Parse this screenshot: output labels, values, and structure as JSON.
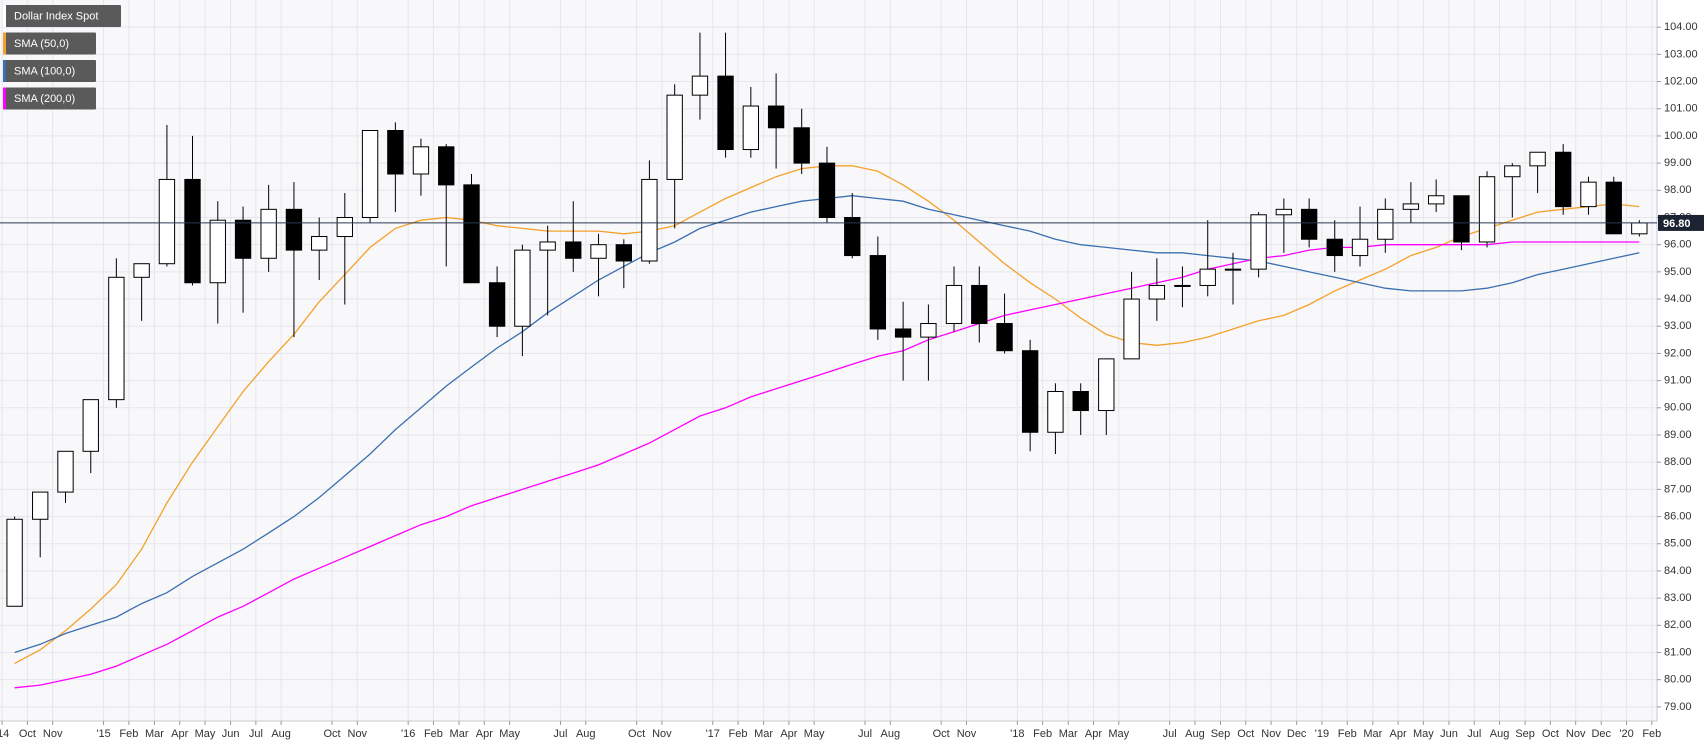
{
  "chart_data": {
    "type": "candlestick",
    "name": "Dollar Index Spot",
    "x": [
      2014.708,
      2014.792,
      2014.875,
      2014.958,
      2015.042,
      2015.125,
      2015.208,
      2015.292,
      2015.375,
      2015.458,
      2015.542,
      2015.625,
      2015.708,
      2015.792,
      2015.875,
      2015.958,
      2016.042,
      2016.125,
      2016.208,
      2016.292,
      2016.375,
      2016.458,
      2016.542,
      2016.625,
      2016.708,
      2016.792,
      2016.875,
      2016.958,
      2017.042,
      2017.125,
      2017.208,
      2017.292,
      2017.375,
      2017.458,
      2017.542,
      2017.625,
      2017.708,
      2017.792,
      2017.875,
      2017.958,
      2018.042,
      2018.125,
      2018.208,
      2018.292,
      2018.375,
      2018.458,
      2018.542,
      2018.625,
      2018.708,
      2018.792,
      2018.875,
      2018.958,
      2019.042,
      2019.125,
      2019.208,
      2019.292,
      2019.375,
      2019.458,
      2019.542,
      2019.625,
      2019.708,
      2019.792,
      2019.875,
      2019.958,
      2020.042
    ],
    "open": [
      82.7,
      85.9,
      86.9,
      88.4,
      90.3,
      94.8,
      95.3,
      98.4,
      94.6,
      96.9,
      95.5,
      97.3,
      95.8,
      96.3,
      97.0,
      100.2,
      98.6,
      99.6,
      98.2,
      94.6,
      93.0,
      95.8,
      96.1,
      95.5,
      96.0,
      95.4,
      98.4,
      101.5,
      102.2,
      99.5,
      101.1,
      100.3,
      99.0,
      97.0,
      95.6,
      92.9,
      92.6,
      93.1,
      94.5,
      93.1,
      92.1,
      89.1,
      90.6,
      89.9,
      91.8,
      94.0,
      94.5,
      94.5,
      95.1,
      95.1,
      97.1,
      97.3,
      96.2,
      95.6,
      96.2,
      97.3,
      97.5,
      97.8,
      96.1,
      98.5,
      98.9,
      99.4,
      97.4,
      98.3,
      96.4
    ],
    "high": [
      86.0,
      86.9,
      88.4,
      90.3,
      95.5,
      95.3,
      100.4,
      100.0,
      97.6,
      97.4,
      98.2,
      98.3,
      97.0,
      97.9,
      100.2,
      100.5,
      99.9,
      99.7,
      98.6,
      95.2,
      96.0,
      96.7,
      97.6,
      96.4,
      96.2,
      99.1,
      101.9,
      103.8,
      103.8,
      101.8,
      102.3,
      101.0,
      99.6,
      97.9,
      96.3,
      93.9,
      93.8,
      95.2,
      95.2,
      94.2,
      92.5,
      90.9,
      90.9,
      91.8,
      95.0,
      95.5,
      95.2,
      96.9,
      95.7,
      97.2,
      97.7,
      97.7,
      96.9,
      97.4,
      97.7,
      98.3,
      98.4,
      97.8,
      98.7,
      99.0,
      99.4,
      99.7,
      98.5,
      98.5,
      96.9
    ],
    "low": [
      82.7,
      84.5,
      86.5,
      87.6,
      90.0,
      93.2,
      95.2,
      94.5,
      93.1,
      93.5,
      95.0,
      92.6,
      94.7,
      93.8,
      96.8,
      97.2,
      97.8,
      95.2,
      94.6,
      92.6,
      91.9,
      93.4,
      95.0,
      94.1,
      94.4,
      95.3,
      96.6,
      100.6,
      99.2,
      99.2,
      98.8,
      98.6,
      96.8,
      95.5,
      92.5,
      91.0,
      91.0,
      92.8,
      92.4,
      92.0,
      88.4,
      88.3,
      89.0,
      89.0,
      91.8,
      93.2,
      93.7,
      94.1,
      93.8,
      94.8,
      95.7,
      95.9,
      95.0,
      95.2,
      95.7,
      96.8,
      97.2,
      95.8,
      95.9,
      97.0,
      97.9,
      97.1,
      97.1,
      96.4,
      96.3
    ],
    "close": [
      85.9,
      86.9,
      88.4,
      90.3,
      94.8,
      95.3,
      98.4,
      94.6,
      96.9,
      95.5,
      97.3,
      95.8,
      96.3,
      97.0,
      100.2,
      98.6,
      99.6,
      98.2,
      94.6,
      93.0,
      95.8,
      96.1,
      95.5,
      96.0,
      95.4,
      98.4,
      101.5,
      102.2,
      99.5,
      101.1,
      100.3,
      99.0,
      97.0,
      95.6,
      92.9,
      92.6,
      93.1,
      94.5,
      93.1,
      92.1,
      89.1,
      90.6,
      89.9,
      91.8,
      94.0,
      94.5,
      94.5,
      95.1,
      95.1,
      97.1,
      97.3,
      96.2,
      95.6,
      96.2,
      97.3,
      97.5,
      97.8,
      96.1,
      98.5,
      98.9,
      99.4,
      97.4,
      98.3,
      96.4,
      96.8
    ],
    "overlays": [
      {
        "name": "SMA (50,0)",
        "color": "#f5a02a",
        "values": [
          80.6,
          81.1,
          81.8,
          82.6,
          83.5,
          84.8,
          86.5,
          88.0,
          89.3,
          90.6,
          91.7,
          92.7,
          93.9,
          94.9,
          95.9,
          96.6,
          96.9,
          97.0,
          96.9,
          96.7,
          96.6,
          96.5,
          96.5,
          96.5,
          96.4,
          96.5,
          96.7,
          97.2,
          97.7,
          98.1,
          98.5,
          98.8,
          98.9,
          98.9,
          98.7,
          98.2,
          97.6,
          96.9,
          96.1,
          95.3,
          94.6,
          94.0,
          93.3,
          92.7,
          92.4,
          92.3,
          92.4,
          92.6,
          92.9,
          93.2,
          93.4,
          93.8,
          94.3,
          94.7,
          95.1,
          95.6,
          95.9,
          96.3,
          96.6,
          96.9,
          97.2,
          97.3,
          97.4,
          97.5,
          97.4
        ]
      },
      {
        "name": "SMA (100,0)",
        "color": "#3a6fb0",
        "values": [
          81.0,
          81.3,
          81.7,
          82.0,
          82.3,
          82.8,
          83.2,
          83.8,
          84.3,
          84.8,
          85.4,
          86.0,
          86.7,
          87.5,
          88.3,
          89.2,
          90.0,
          90.8,
          91.5,
          92.2,
          92.8,
          93.5,
          94.1,
          94.7,
          95.2,
          95.7,
          96.1,
          96.6,
          96.9,
          97.2,
          97.4,
          97.6,
          97.7,
          97.8,
          97.7,
          97.6,
          97.3,
          97.1,
          96.9,
          96.7,
          96.5,
          96.2,
          96.0,
          95.9,
          95.8,
          95.7,
          95.7,
          95.6,
          95.5,
          95.4,
          95.2,
          95.0,
          94.8,
          94.6,
          94.4,
          94.3,
          94.3,
          94.3,
          94.4,
          94.6,
          94.9,
          95.1,
          95.3,
          95.5,
          95.7
        ]
      },
      {
        "name": "SMA (200,0)",
        "color": "#ff00ff",
        "values": [
          79.7,
          79.8,
          80.0,
          80.2,
          80.5,
          80.9,
          81.3,
          81.8,
          82.3,
          82.7,
          83.2,
          83.7,
          84.1,
          84.5,
          84.9,
          85.3,
          85.7,
          86.0,
          86.4,
          86.7,
          87.0,
          87.3,
          87.6,
          87.9,
          88.3,
          88.7,
          89.2,
          89.7,
          90.0,
          90.4,
          90.7,
          91.0,
          91.3,
          91.6,
          91.9,
          92.1,
          92.5,
          92.8,
          93.1,
          93.4,
          93.6,
          93.8,
          94.0,
          94.2,
          94.4,
          94.6,
          94.8,
          95.1,
          95.3,
          95.5,
          95.6,
          95.8,
          95.9,
          95.9,
          96.0,
          96.0,
          96.0,
          96.0,
          96.0,
          96.1,
          96.1,
          96.1,
          96.1,
          96.1,
          96.1
        ]
      }
    ],
    "last_price": {
      "value": 96.8,
      "label": "96.80"
    },
    "xlim": [
      2014.66,
      2020.1
    ],
    "xticks": [
      {
        "value": 2014.667,
        "label": "'14"
      },
      {
        "value": 2014.75,
        "label": "Oct"
      },
      {
        "value": 2014.833,
        "label": "Nov"
      },
      {
        "value": 2015.0,
        "label": "'15"
      },
      {
        "value": 2015.083,
        "label": "Feb"
      },
      {
        "value": 2015.167,
        "label": "Mar"
      },
      {
        "value": 2015.25,
        "label": "Apr"
      },
      {
        "value": 2015.333,
        "label": "May"
      },
      {
        "value": 2015.417,
        "label": "Jun"
      },
      {
        "value": 2015.5,
        "label": "Jul"
      },
      {
        "value": 2015.583,
        "label": "Aug"
      },
      {
        "value": 2015.75,
        "label": "Oct"
      },
      {
        "value": 2015.833,
        "label": "Nov"
      },
      {
        "value": 2016.0,
        "label": "'16"
      },
      {
        "value": 2016.083,
        "label": "Feb"
      },
      {
        "value": 2016.167,
        "label": "Mar"
      },
      {
        "value": 2016.25,
        "label": "Apr"
      },
      {
        "value": 2016.333,
        "label": "May"
      },
      {
        "value": 2016.5,
        "label": "Jul"
      },
      {
        "value": 2016.583,
        "label": "Aug"
      },
      {
        "value": 2016.75,
        "label": "Oct"
      },
      {
        "value": 2016.833,
        "label": "Nov"
      },
      {
        "value": 2017.0,
        "label": "'17"
      },
      {
        "value": 2017.083,
        "label": "Feb"
      },
      {
        "value": 2017.167,
        "label": "Mar"
      },
      {
        "value": 2017.25,
        "label": "Apr"
      },
      {
        "value": 2017.333,
        "label": "May"
      },
      {
        "value": 2017.5,
        "label": "Jul"
      },
      {
        "value": 2017.583,
        "label": "Aug"
      },
      {
        "value": 2017.75,
        "label": "Oct"
      },
      {
        "value": 2017.833,
        "label": "Nov"
      },
      {
        "value": 2018.0,
        "label": "'18"
      },
      {
        "value": 2018.083,
        "label": "Feb"
      },
      {
        "value": 2018.167,
        "label": "Mar"
      },
      {
        "value": 2018.25,
        "label": "Apr"
      },
      {
        "value": 2018.333,
        "label": "May"
      },
      {
        "value": 2018.5,
        "label": "Jul"
      },
      {
        "value": 2018.583,
        "label": "Aug"
      },
      {
        "value": 2018.667,
        "label": "Sep"
      },
      {
        "value": 2018.75,
        "label": "Oct"
      },
      {
        "value": 2018.833,
        "label": "Nov"
      },
      {
        "value": 2018.917,
        "label": "Dec"
      },
      {
        "value": 2019.0,
        "label": "'19"
      },
      {
        "value": 2019.083,
        "label": "Feb"
      },
      {
        "value": 2019.167,
        "label": "Mar"
      },
      {
        "value": 2019.25,
        "label": "Apr"
      },
      {
        "value": 2019.333,
        "label": "May"
      },
      {
        "value": 2019.417,
        "label": "Jun"
      },
      {
        "value": 2019.5,
        "label": "Jul"
      },
      {
        "value": 2019.583,
        "label": "Aug"
      },
      {
        "value": 2019.667,
        "label": "Sep"
      },
      {
        "value": 2019.75,
        "label": "Oct"
      },
      {
        "value": 2019.833,
        "label": "Nov"
      },
      {
        "value": 2019.917,
        "label": "Dec"
      },
      {
        "value": 2020.0,
        "label": "'20"
      },
      {
        "value": 2020.083,
        "label": "Feb"
      }
    ],
    "ylim": [
      78.48,
      105.0
    ],
    "yticks": [
      {
        "value": 79,
        "label": "79.00"
      },
      {
        "value": 80,
        "label": "80.00"
      },
      {
        "value": 81,
        "label": "81.00"
      },
      {
        "value": 82,
        "label": "82.00"
      },
      {
        "value": 83,
        "label": "83.00"
      },
      {
        "value": 84,
        "label": "84.00"
      },
      {
        "value": 85,
        "label": "85.00"
      },
      {
        "value": 86,
        "label": "86.00"
      },
      {
        "value": 87,
        "label": "87.00"
      },
      {
        "value": 88,
        "label": "88.00"
      },
      {
        "value": 89,
        "label": "89.00"
      },
      {
        "value": 90,
        "label": "90.00"
      },
      {
        "value": 91,
        "label": "91.00"
      },
      {
        "value": 92,
        "label": "92.00"
      },
      {
        "value": 93,
        "label": "93.00"
      },
      {
        "value": 94,
        "label": "94.00"
      },
      {
        "value": 95,
        "label": "95.00"
      },
      {
        "value": 96,
        "label": "96.00"
      },
      {
        "value": 97,
        "label": "97.00"
      },
      {
        "value": 98,
        "label": "98.00"
      },
      {
        "value": 99,
        "label": "99.00"
      },
      {
        "value": 100,
        "label": "100.00"
      },
      {
        "value": 101,
        "label": "101.00"
      },
      {
        "value": 102,
        "label": "102.00"
      },
      {
        "value": 103,
        "label": "103.00"
      },
      {
        "value": 104,
        "label": "104.00"
      }
    ],
    "grid": true,
    "up_color": "#ffffff",
    "down_color": "#000000"
  }
}
